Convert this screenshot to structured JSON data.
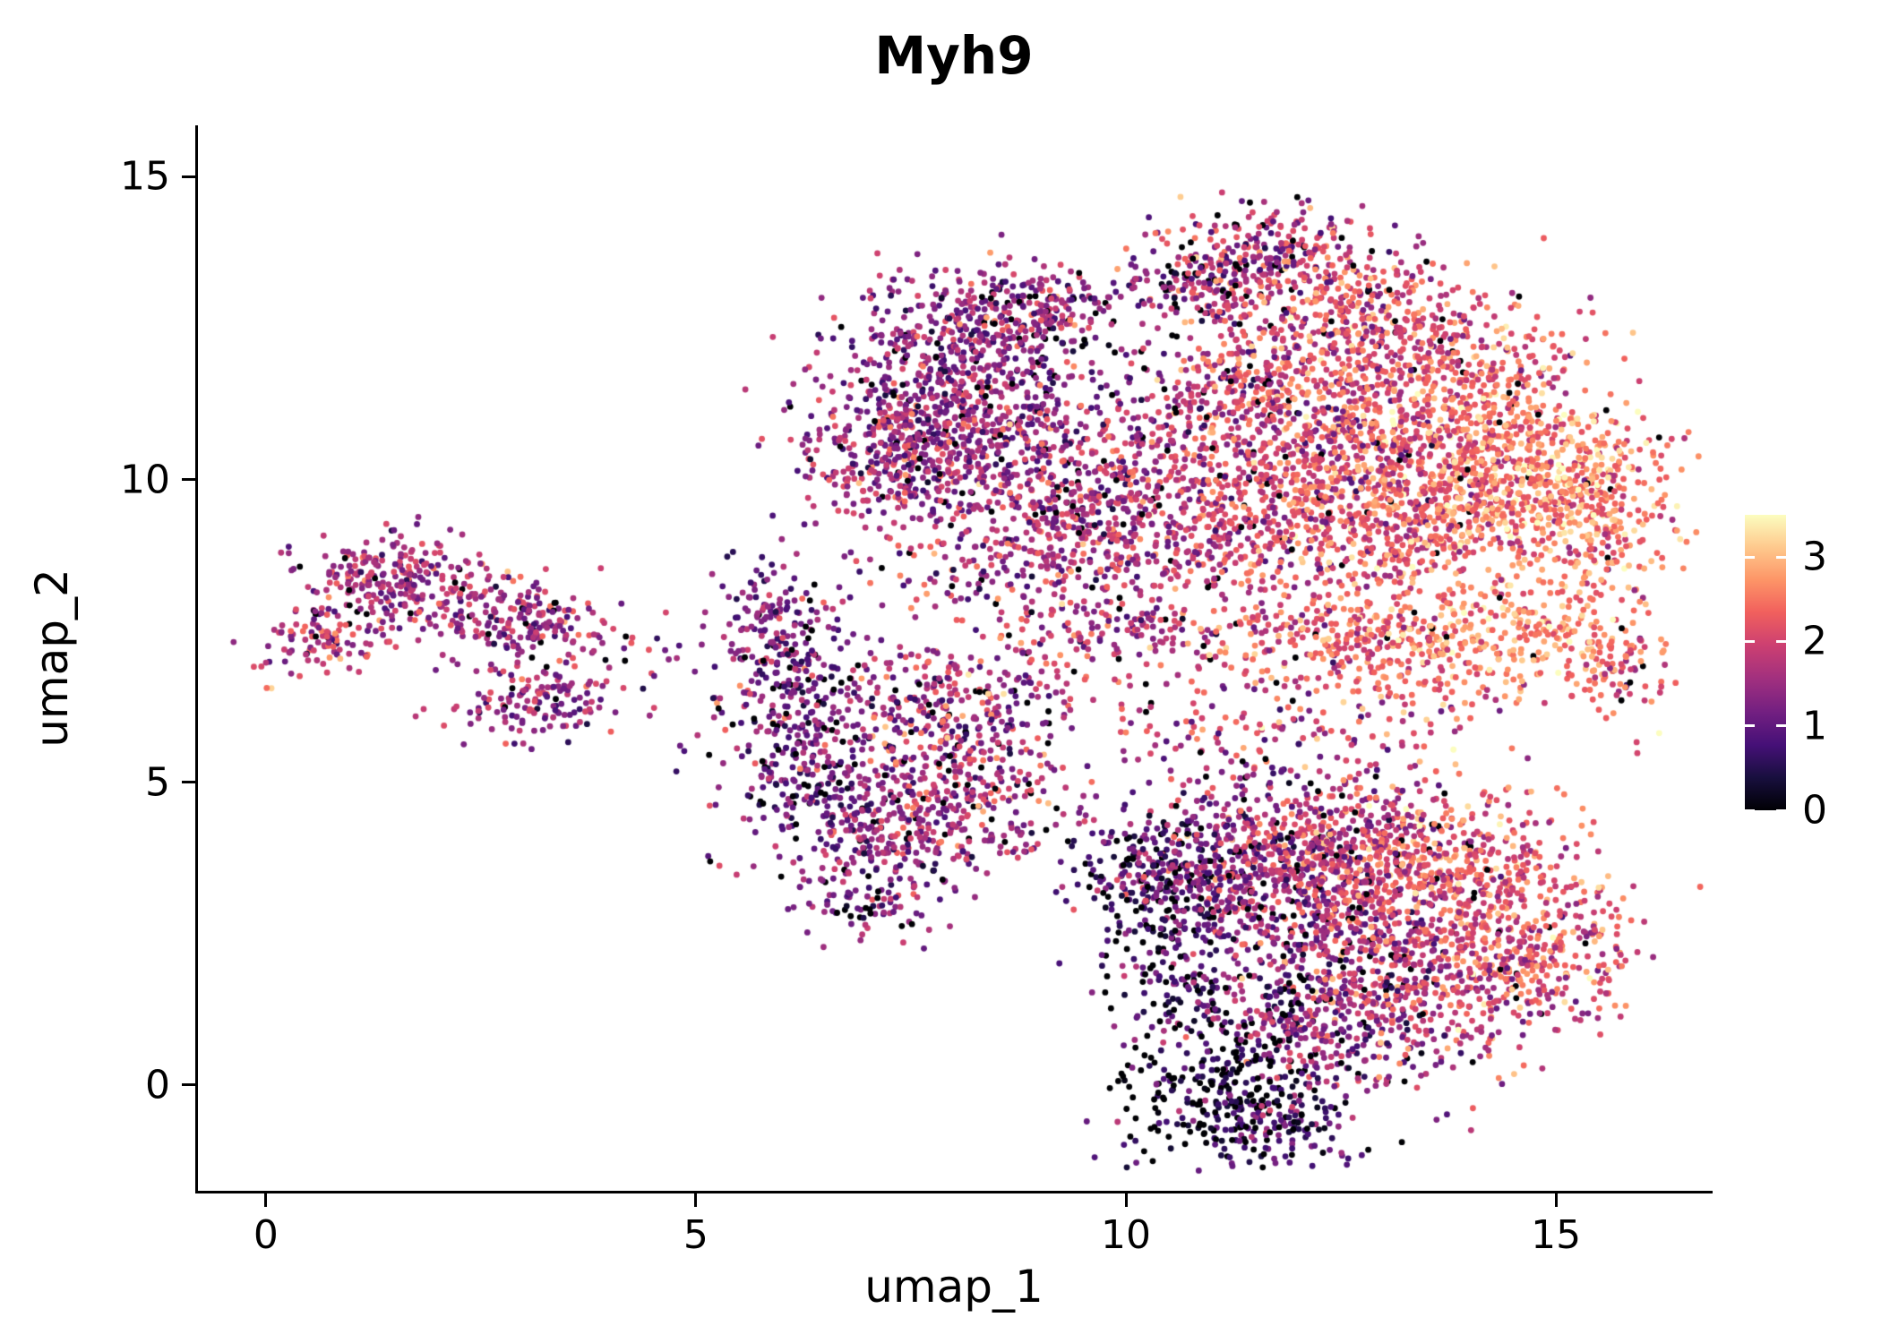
{
  "chart_data": {
    "type": "scatter",
    "title": "Myh9",
    "xlabel": "umap_1",
    "ylabel": "umap_2",
    "x_ticks": [
      0,
      5,
      10,
      15
    ],
    "y_ticks": [
      0,
      5,
      10,
      15
    ],
    "xlim": [
      -0.8,
      16.8
    ],
    "ylim": [
      -1.75,
      15.85
    ],
    "grid": false,
    "panel_background": "#FFFFFF",
    "axis_color": "#000000",
    "point_radius": 3.4,
    "seed": 42,
    "legend": {
      "position": "right",
      "vmin": 0,
      "vmax": 3.5,
      "ticks": [
        3,
        2,
        1,
        0
      ]
    },
    "colormap": {
      "name": "magma",
      "stops": [
        [
          0.0,
          "#000004"
        ],
        [
          0.11,
          "#180F3E"
        ],
        [
          0.22,
          "#451077"
        ],
        [
          0.33,
          "#721F81"
        ],
        [
          0.44,
          "#9F2F7F"
        ],
        [
          0.56,
          "#CD4071"
        ],
        [
          0.67,
          "#F1605D"
        ],
        [
          0.78,
          "#FD9567"
        ],
        [
          0.89,
          "#FEC98D"
        ],
        [
          1.0,
          "#FCFDBF"
        ]
      ]
    },
    "cluster_fields": [
      "center_x",
      "center_y",
      "sd_x",
      "sd_y",
      "n_points",
      "expr_mean",
      "expr_sd",
      "zero_fraction"
    ],
    "clusters": [
      [
        1.4,
        8.3,
        0.55,
        0.45,
        220,
        1.6,
        0.5,
        0.05
      ],
      [
        0.6,
        7.3,
        0.35,
        0.3,
        90,
        1.7,
        0.5,
        0.05
      ],
      [
        2.4,
        7.9,
        0.5,
        0.4,
        130,
        1.5,
        0.5,
        0.05
      ],
      [
        3.2,
        7.6,
        0.45,
        0.35,
        120,
        1.6,
        0.5,
        0.05
      ],
      [
        3.1,
        6.3,
        0.5,
        0.3,
        140,
        1.5,
        0.5,
        0.05
      ],
      [
        4.6,
        7.0,
        0.5,
        0.3,
        15,
        1.3,
        0.5,
        0.1
      ],
      [
        6.1,
        6.9,
        0.4,
        0.7,
        220,
        1.2,
        0.5,
        0.08
      ],
      [
        6.3,
        5.3,
        0.5,
        0.6,
        220,
        1.1,
        0.5,
        0.1
      ],
      [
        7.2,
        4.2,
        0.65,
        0.55,
        280,
        1.4,
        0.5,
        0.06
      ],
      [
        8.2,
        4.9,
        0.55,
        0.6,
        240,
        1.6,
        0.55,
        0.05
      ],
      [
        7.9,
        6.3,
        0.7,
        0.55,
        260,
        1.6,
        0.6,
        0.05
      ],
      [
        7.0,
        3.0,
        0.4,
        0.3,
        70,
        1.3,
        0.5,
        0.08
      ],
      [
        5.8,
        7.9,
        0.3,
        0.4,
        60,
        1.2,
        0.5,
        0.1
      ],
      [
        8.3,
        12.5,
        0.75,
        0.45,
        320,
        1.3,
        0.55,
        0.06
      ],
      [
        7.6,
        11.4,
        0.6,
        0.55,
        280,
        1.4,
        0.5,
        0.05
      ],
      [
        7.4,
        10.2,
        0.65,
        0.5,
        300,
        1.5,
        0.5,
        0.05
      ],
      [
        8.7,
        10.8,
        0.75,
        0.7,
        380,
        1.5,
        0.55,
        0.05
      ],
      [
        9.5,
        9.5,
        0.6,
        0.5,
        240,
        1.7,
        0.55,
        0.04
      ],
      [
        9.0,
        12.9,
        0.5,
        0.4,
        120,
        1.5,
        0.6,
        0.08
      ],
      [
        9.8,
        7.8,
        1.0,
        0.8,
        260,
        1.8,
        0.6,
        0.05
      ],
      [
        8.6,
        8.6,
        0.8,
        0.5,
        140,
        1.6,
        0.6,
        0.05
      ],
      [
        11.6,
        13.7,
        0.65,
        0.45,
        280,
        1.8,
        0.6,
        0.06
      ],
      [
        10.9,
        13.2,
        0.4,
        0.35,
        110,
        1.3,
        0.6,
        0.12
      ],
      [
        12.7,
        12.6,
        0.8,
        0.6,
        380,
        2.1,
        0.55,
        0.03
      ],
      [
        13.8,
        11.5,
        0.9,
        0.7,
        450,
        2.3,
        0.5,
        0.02
      ],
      [
        14.3,
        10.0,
        0.9,
        0.65,
        650,
        2.6,
        0.45,
        0.01
      ],
      [
        12.4,
        10.4,
        0.85,
        0.7,
        480,
        2.0,
        0.55,
        0.03
      ],
      [
        11.2,
        9.2,
        0.7,
        0.55,
        300,
        1.9,
        0.55,
        0.04
      ],
      [
        15.4,
        9.6,
        0.45,
        0.8,
        240,
        2.5,
        0.5,
        0.02
      ],
      [
        13.3,
        9.0,
        0.8,
        0.5,
        300,
        2.3,
        0.5,
        0.02
      ],
      [
        10.6,
        10.6,
        0.5,
        0.6,
        160,
        1.7,
        0.6,
        0.05
      ],
      [
        11.5,
        11.6,
        0.6,
        0.6,
        240,
        1.9,
        0.6,
        0.04
      ],
      [
        12.1,
        7.4,
        0.8,
        0.4,
        200,
        2.2,
        0.5,
        0.03
      ],
      [
        14.5,
        7.5,
        0.8,
        0.45,
        260,
        2.7,
        0.4,
        0.01
      ],
      [
        15.7,
        6.9,
        0.35,
        0.5,
        90,
        2.2,
        0.5,
        0.03
      ],
      [
        13.3,
        7.0,
        0.6,
        0.5,
        150,
        2.4,
        0.5,
        0.02
      ],
      [
        11.7,
        5.7,
        1.1,
        0.6,
        160,
        1.8,
        0.6,
        0.06
      ],
      [
        10.4,
        3.4,
        0.45,
        0.6,
        240,
        0.9,
        0.55,
        0.18
      ],
      [
        11.3,
        3.7,
        0.7,
        0.6,
        350,
        1.3,
        0.6,
        0.1
      ],
      [
        12.5,
        4.0,
        0.8,
        0.55,
        380,
        1.9,
        0.55,
        0.04
      ],
      [
        13.8,
        3.5,
        0.75,
        0.65,
        400,
        2.2,
        0.5,
        0.02
      ],
      [
        14.6,
        2.2,
        0.6,
        0.75,
        340,
        2.2,
        0.5,
        0.02
      ],
      [
        13.2,
        1.6,
        0.8,
        0.75,
        450,
        1.8,
        0.6,
        0.05
      ],
      [
        12.0,
        1.1,
        0.65,
        0.7,
        330,
        1.2,
        0.6,
        0.12
      ],
      [
        11.0,
        -0.2,
        0.55,
        0.5,
        230,
        0.5,
        0.5,
        0.3
      ],
      [
        11.9,
        -0.7,
        0.45,
        0.3,
        100,
        0.9,
        0.5,
        0.15
      ],
      [
        10.6,
        1.8,
        0.4,
        0.6,
        150,
        0.8,
        0.5,
        0.2
      ],
      [
        12.3,
        2.8,
        0.7,
        0.5,
        280,
        1.6,
        0.6,
        0.06
      ]
    ]
  }
}
